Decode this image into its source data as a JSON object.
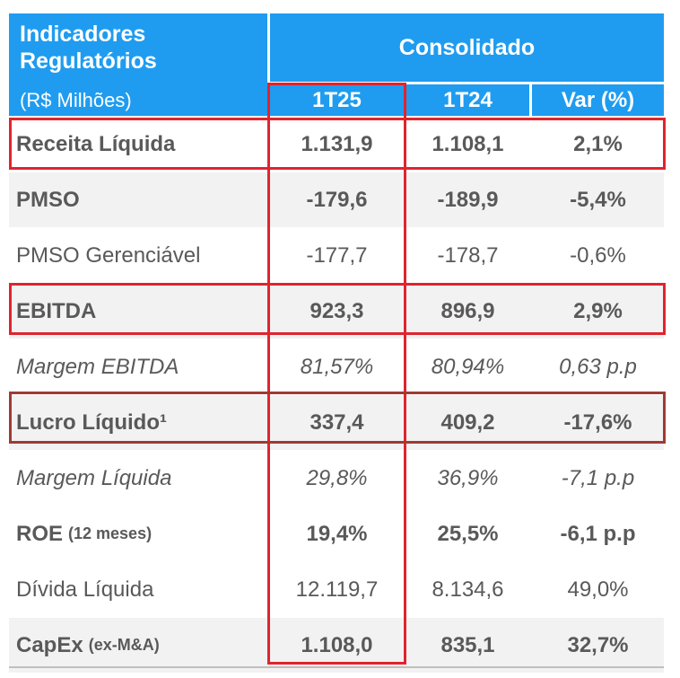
{
  "header": {
    "title": "Indicadores Regulatórios",
    "unit": "(R$ Milhões)",
    "group": "Consolidado",
    "columns": [
      "1T25",
      "1T24",
      "Var (%)"
    ]
  },
  "rows": [
    {
      "label": "Receita Líquida",
      "sub": "",
      "v1": "1.131,9",
      "v2": "1.108,1",
      "v3": "2,1%",
      "style": "bold"
    },
    {
      "label": "PMSO",
      "sub": "",
      "v1": "-179,6",
      "v2": "-189,9",
      "v3": "-5,4%",
      "style": "bold"
    },
    {
      "label": "PMSO Gerenciável",
      "sub": "",
      "v1": "-177,7",
      "v2": "-178,7",
      "v3": "-0,6%",
      "style": "normal"
    },
    {
      "label": "EBITDA",
      "sub": "",
      "v1": "923,3",
      "v2": "896,9",
      "v3": "2,9%",
      "style": "bold"
    },
    {
      "label": "Margem EBITDA",
      "sub": "",
      "v1": "81,57%",
      "v2": "80,94%",
      "v3": "0,63 p.p",
      "style": "italic"
    },
    {
      "label": "Lucro Líquido¹",
      "sub": "",
      "v1": "337,4",
      "v2": "409,2",
      "v3": "-17,6%",
      "style": "bold"
    },
    {
      "label": "Margem Líquida",
      "sub": "",
      "v1": "29,8%",
      "v2": "36,9%",
      "v3": "-7,1 p.p",
      "style": "italic"
    },
    {
      "label": "ROE",
      "sub": "(12 meses)",
      "v1": "19,4%",
      "v2": "25,5%",
      "v3": "-6,1 p.p",
      "style": "bold"
    },
    {
      "label": "Dívida Líquida",
      "sub": "",
      "v1": "12.119,7",
      "v2": "8.134,6",
      "v3": "49,0%",
      "style": "normal"
    },
    {
      "label": "CapEx",
      "sub": "(ex-M&A)",
      "v1": "1.108,0",
      "v2": "835,1",
      "v3": "32,7%",
      "style": "bold"
    }
  ],
  "colors": {
    "header": "#1f9cf0",
    "highlight_red": "#e0242e",
    "highlight_brown": "#9e3b34"
  }
}
